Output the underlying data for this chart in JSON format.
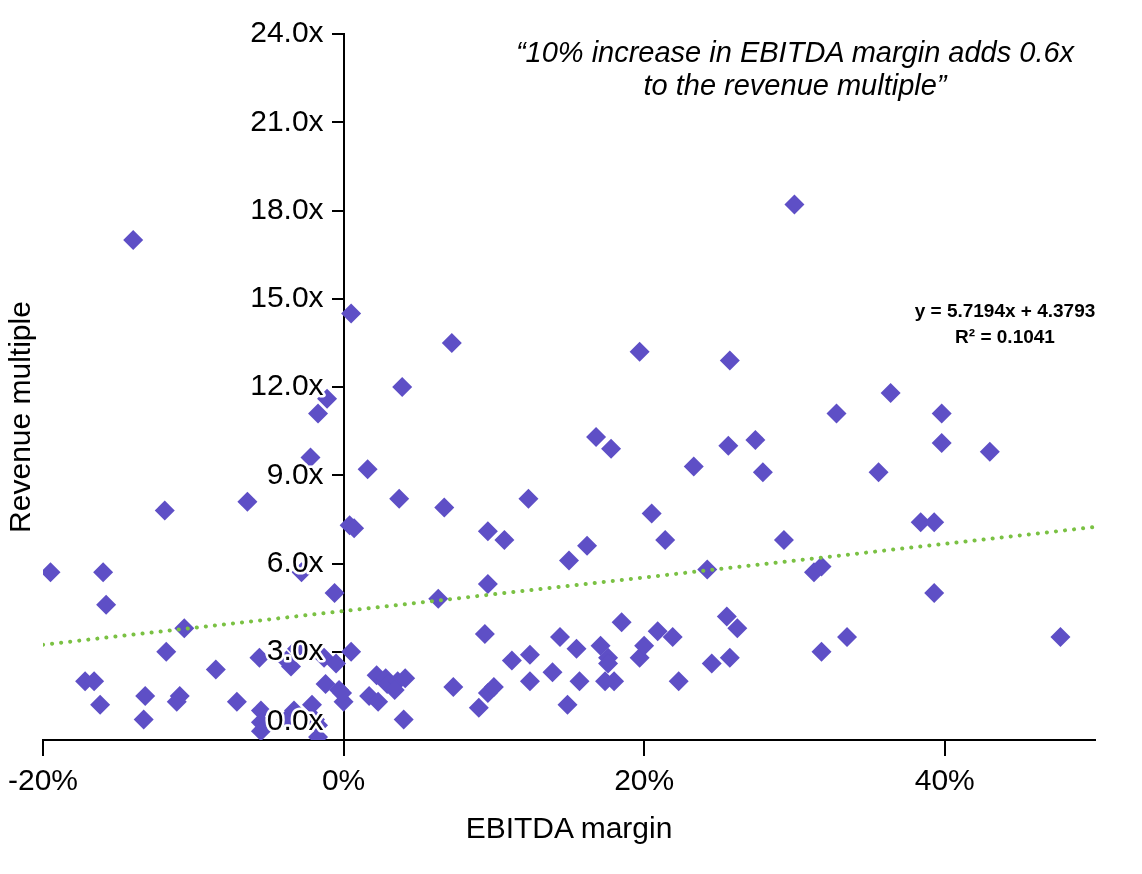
{
  "chart_data": {
    "type": "scatter",
    "xlabel": "EBITDA margin",
    "ylabel": "Revenue multiple",
    "xlim": [
      -20,
      50
    ],
    "xticks": [
      {
        "value": -20,
        "label": "-20%"
      },
      {
        "value": 0,
        "label": "0%"
      },
      {
        "value": 20,
        "label": "20%"
      },
      {
        "value": 40,
        "label": "40%"
      }
    ],
    "ylim": [
      0,
      24
    ],
    "yticks": [
      {
        "value": 0,
        "label": "0.0x"
      },
      {
        "value": 3,
        "label": "3.0x"
      },
      {
        "value": 6,
        "label": "6.0x"
      },
      {
        "value": 9,
        "label": "9.0x"
      },
      {
        "value": 12,
        "label": "12.0x"
      },
      {
        "value": 15,
        "label": "15.0x"
      },
      {
        "value": 18,
        "label": "18.0x"
      },
      {
        "value": 21,
        "label": "21.0x"
      },
      {
        "value": 24,
        "label": "24.0x"
      }
    ],
    "marker": "diamond",
    "legend": false,
    "annotations": [
      "“10% increase in EBITDA margin adds 0.6x to the revenue multiple”",
      "y = 5.7194x + 4.3793",
      "R² = 0.1041"
    ],
    "series": [
      {
        "color": "#5e4fc6",
        "x": [
          -19.5,
          -14.0,
          -16.0,
          -15.8,
          -17.2,
          -16.6,
          -16.2,
          -13.2,
          -13.3,
          -11.9,
          -11.8,
          -10.6,
          -10.9,
          -11.1,
          -8.5,
          -7.1,
          -6.4,
          -5.6,
          -5.5,
          -5.5,
          -5.5,
          -3.8,
          -3.3,
          -3.5,
          -3.8,
          -3.1,
          -2.8,
          -2.2,
          -1.7,
          -1.1,
          -2.1,
          -1.9,
          -1.7,
          -1.7,
          -1.3,
          -1.2,
          -0.6,
          -0.5,
          -0.3,
          0,
          -0.1,
          0.5,
          0.5,
          0.4,
          0.7,
          1.6,
          1.7,
          2.2,
          2.8,
          2.3,
          2.9,
          3.6,
          3.4,
          3.9,
          3.7,
          4.1,
          4.0,
          6.3,
          7.2,
          6.7,
          7.3,
          9.4,
          9.6,
          9.6,
          9.0,
          9.6,
          10.0,
          10.7,
          11.2,
          12.3,
          12.4,
          12.4,
          13.9,
          14.4,
          15.0,
          14.9,
          15.5,
          15.7,
          16.2,
          16.8,
          17.1,
          17.8,
          17.6,
          17.6,
          18.0,
          17.4,
          18.5,
          19.7,
          19.7,
          20.0,
          20.5,
          20.9,
          21.4,
          21.9,
          22.3,
          23.3,
          24.2,
          24.5,
          25.5,
          25.7,
          25.6,
          25.7,
          26.2,
          27.4,
          27.9,
          30.0,
          29.3,
          31.3,
          31.8,
          31.8,
          32.8,
          33.5,
          35.6,
          36.4,
          38.4,
          39.3,
          39.3,
          39.8,
          39.8,
          43.0,
          47.7
        ],
        "values": [
          5.7,
          17.0,
          5.7,
          4.6,
          2.0,
          2.0,
          1.2,
          1.5,
          0.7,
          7.8,
          3.0,
          3.8,
          1.5,
          1.3,
          2.4,
          1.3,
          8.1,
          2.8,
          1.0,
          0.6,
          0.3,
          0.7,
          1.0,
          2.5,
          2.7,
          3.1,
          5.7,
          9.6,
          11.1,
          11.6,
          1.2,
          0.7,
          0.5,
          0.1,
          2.8,
          1.9,
          5.0,
          2.6,
          1.7,
          1.3,
          1.6,
          14.5,
          3.0,
          7.3,
          7.2,
          9.2,
          1.5,
          2.2,
          2.1,
          1.3,
          1.9,
          2.0,
          1.7,
          12.0,
          8.2,
          2.1,
          0.7,
          4.8,
          13.5,
          7.9,
          1.8,
          3.6,
          7.1,
          5.3,
          1.1,
          1.6,
          1.8,
          6.8,
          2.7,
          8.2,
          2.9,
          2.0,
          2.3,
          3.5,
          6.1,
          1.2,
          3.1,
          2.0,
          6.6,
          10.3,
          3.2,
          9.9,
          2.8,
          2.6,
          2.0,
          2.0,
          4.0,
          13.2,
          2.8,
          3.2,
          7.7,
          3.7,
          6.8,
          3.5,
          2.0,
          9.3,
          5.8,
          2.6,
          4.2,
          12.9,
          10.0,
          2.8,
          3.8,
          10.2,
          9.1,
          18.2,
          6.8,
          5.7,
          5.9,
          3.0,
          11.1,
          3.5,
          9.1,
          11.8,
          7.4,
          7.4,
          5.0,
          11.1,
          10.1,
          9.8,
          3.5
        ]
      },
      {
        "type": "line",
        "color": "#7ac143",
        "marker": "none",
        "line_style": "dotted",
        "x": [
          -20,
          50
        ],
        "values": [
          3.24,
          7.24
        ]
      }
    ]
  }
}
